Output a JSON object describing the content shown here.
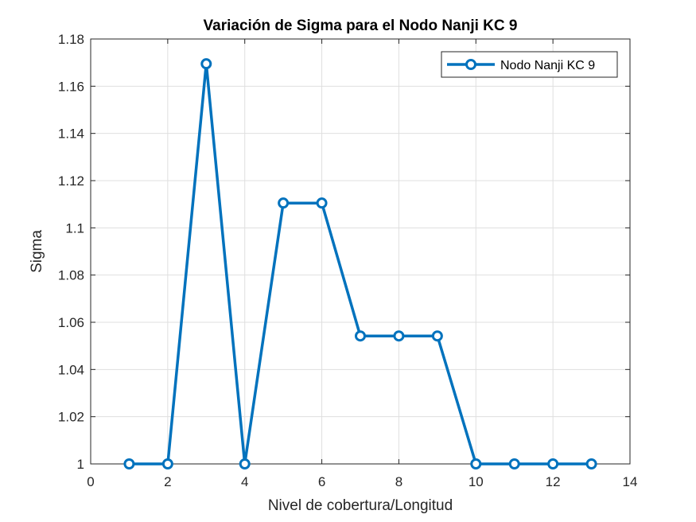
{
  "chart_data": {
    "type": "line",
    "title": "Variación de Sigma para el Nodo Nanji KC 9",
    "xlabel": "Nivel de cobertura/Longitud",
    "ylabel": "Sigma",
    "xlim": [
      0,
      14
    ],
    "ylim": [
      1,
      1.18
    ],
    "xticks": [
      0,
      2,
      4,
      6,
      8,
      10,
      12,
      14
    ],
    "yticks": [
      1,
      1.02,
      1.04,
      1.06,
      1.08,
      1.1,
      1.12,
      1.14,
      1.16,
      1.18
    ],
    "xtick_labels": [
      "0",
      "2",
      "4",
      "6",
      "8",
      "10",
      "12",
      "14"
    ],
    "ytick_labels": [
      "1",
      "1.02",
      "1.04",
      "1.06",
      "1.08",
      "1.1",
      "1.12",
      "1.14",
      "1.16",
      "1.18"
    ],
    "grid": true,
    "legend_position": "top-right",
    "series": [
      {
        "name": "Nodo Nanji KC 9",
        "color": "#0072BD",
        "marker": "circle",
        "x": [
          1,
          2,
          3,
          4,
          5,
          6,
          7,
          8,
          9,
          10,
          11,
          12,
          13
        ],
        "y": [
          1.0,
          1.0,
          1.1695,
          1.0,
          1.1105,
          1.1105,
          1.0542,
          1.0542,
          1.0542,
          1.0,
          1.0,
          1.0,
          1.0
        ]
      }
    ]
  }
}
